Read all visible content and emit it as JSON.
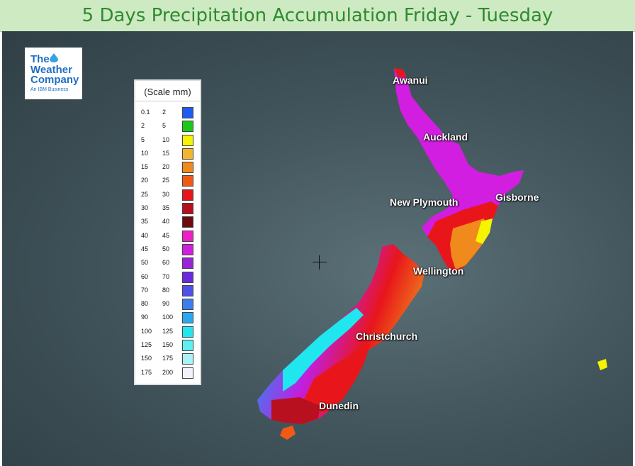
{
  "title": "5 Days Precipitation Accumulation Friday - Tuesday",
  "logo": {
    "line1": "The",
    "line2": "Weather",
    "line3": "Company",
    "line4": "An IBM Business"
  },
  "legend": {
    "title": "(Scale mm)",
    "rows": [
      {
        "from": "0.1",
        "to": "2",
        "color": "#1e5bf0"
      },
      {
        "from": "2",
        "to": "5",
        "color": "#19c919"
      },
      {
        "from": "5",
        "to": "10",
        "color": "#f5f500"
      },
      {
        "from": "10",
        "to": "15",
        "color": "#f3b52e"
      },
      {
        "from": "15",
        "to": "20",
        "color": "#f08a1c"
      },
      {
        "from": "20",
        "to": "25",
        "color": "#f05a14"
      },
      {
        "from": "25",
        "to": "30",
        "color": "#e8161a"
      },
      {
        "from": "30",
        "to": "35",
        "color": "#b8101e"
      },
      {
        "from": "35",
        "to": "40",
        "color": "#6e0a12"
      },
      {
        "from": "40",
        "to": "45",
        "color": "#f01ec8"
      },
      {
        "from": "45",
        "to": "50",
        "color": "#d21ee0"
      },
      {
        "from": "50",
        "to": "60",
        "color": "#9a22d8"
      },
      {
        "from": "60",
        "to": "70",
        "color": "#6a2ae0"
      },
      {
        "from": "70",
        "to": "80",
        "color": "#4e52e8"
      },
      {
        "from": "80",
        "to": "90",
        "color": "#3c7ef0"
      },
      {
        "from": "90",
        "to": "100",
        "color": "#28a8f0"
      },
      {
        "from": "100",
        "to": "125",
        "color": "#20e6f0"
      },
      {
        "from": "125",
        "to": "150",
        "color": "#5cf0f0"
      },
      {
        "from": "150",
        "to": "175",
        "color": "#a8f4f8"
      },
      {
        "from": "175",
        "to": "200",
        "color": "#f2f2fa"
      }
    ]
  },
  "cities": {
    "awanui": "Awanui",
    "auckland": "Auckland",
    "new_plymouth": "New Plymouth",
    "gisborne": "Gisborne",
    "wellington": "Wellington",
    "christchurch": "Christchurch",
    "dunedin": "Dunedin"
  }
}
